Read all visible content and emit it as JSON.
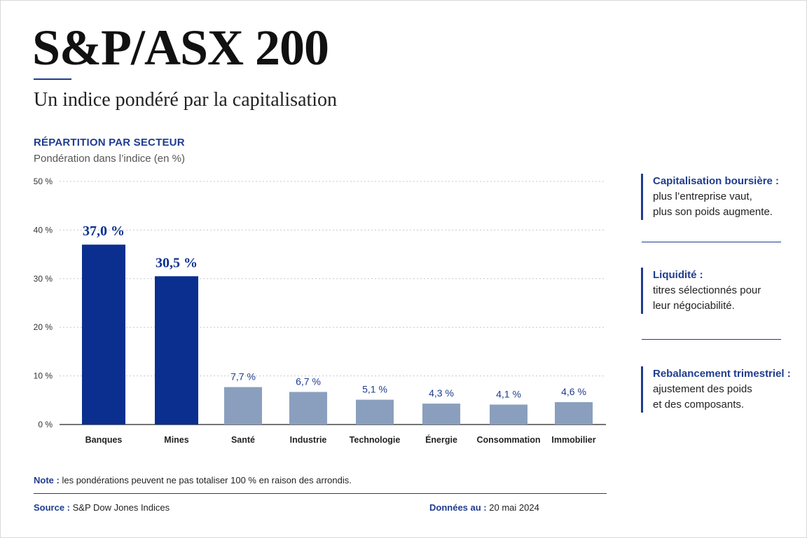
{
  "header": {
    "title": "S&P/ASX 200",
    "subtitle": "Un indice pondéré par la capitalisation"
  },
  "section": {
    "title": "RÉPARTITION PAR SECTEUR",
    "subtitle": "Pondération dans l’indice (en %)"
  },
  "colors": {
    "accent": "#1f3c8f",
    "highlight_bar": "#0a2f8f",
    "other_bar": "#8a9fbe"
  },
  "chart_data": {
    "type": "bar",
    "title": "RÉPARTITION PAR SECTEUR",
    "ylabel": "Pondération dans l’indice (en %)",
    "categories": [
      "Banques",
      "Mines",
      "Santé",
      "Industrie",
      "Technologie",
      "Énergie",
      "Consommation",
      "Immobilier"
    ],
    "values": [
      37.0,
      30.5,
      7.7,
      6.7,
      5.1,
      4.3,
      4.1,
      4.6
    ],
    "value_labels": [
      "37,0 %",
      "30,5 %",
      "7,7 %",
      "6,7 %",
      "5,1 %",
      "4,3 %",
      "4,1 %",
      "4,6 %"
    ],
    "highlighted": [
      true,
      true,
      false,
      false,
      false,
      false,
      false,
      false
    ],
    "ylim": [
      0,
      50
    ],
    "yticks": [
      0,
      10,
      20,
      30,
      40,
      50
    ],
    "ytick_labels": [
      "0 %",
      "10 %",
      "20 %",
      "30 %",
      "40 %",
      "50 %"
    ],
    "grid": true
  },
  "side": [
    {
      "heading": "Capitalisation boursière :",
      "lines": [
        "plus l’entreprise vaut,",
        "plus son poids augmente."
      ]
    },
    {
      "heading": "Liquidité :",
      "lines": [
        "titres sélectionnés pour",
        "leur négociabilité."
      ]
    },
    {
      "heading": "Rebalancement trimestriel :",
      "lines": [
        "ajustement des poids",
        "et des composants."
      ]
    }
  ],
  "note": {
    "label": "Note :",
    "text": "les pondérations peuvent ne pas totaliser 100 % en raison des arrondis."
  },
  "footer": {
    "source_label": "Source :",
    "source": "S&P Dow Jones Indices",
    "date_label": "Données au :",
    "date": "20 mai 2024"
  }
}
